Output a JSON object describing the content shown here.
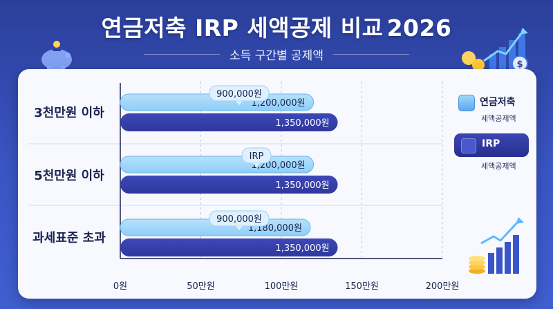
{
  "title_main": "연금저축 IRP 세액공제 비교",
  "title_year": "2026",
  "subtitle": "소득 구간별 공제액",
  "legend": {
    "a_label": "연금저축",
    "a_sub": "세액공제액",
    "b_label": "IRP",
    "b_sub": "세액공제액"
  },
  "colors": {
    "a_bar": "#8fcdf7",
    "b_bar": "#2f389c",
    "grid": "#b9c2dc"
  },
  "chart_data": {
    "type": "bar",
    "orientation": "horizontal",
    "categories": [
      "3천만원 이하",
      "5천만원 이하",
      "과세표준 초과"
    ],
    "series": [
      {
        "name": "연금저축",
        "values": [
          1200000,
          1200000,
          1180000
        ],
        "value_labels": [
          "1,200,000원",
          "1,200,000원",
          "1,180,000원"
        ]
      },
      {
        "name": "IRP",
        "values": [
          1350000,
          1350000,
          1350000
        ],
        "value_labels": [
          "1,350,000원",
          "1,350,000원",
          "1,350,000원"
        ]
      }
    ],
    "callouts": [
      "900,000원",
      "IRP",
      "900,000원"
    ],
    "x_ticks": [
      {
        "value": 0,
        "label": "0원"
      },
      {
        "value": 500000,
        "label": "50만원"
      },
      {
        "value": 1000000,
        "label": "100만원"
      },
      {
        "value": 1500000,
        "label": "150만원"
      },
      {
        "value": 2000000,
        "label": "200만원"
      }
    ],
    "xlim": [
      0,
      2000000
    ],
    "legend_position": "right",
    "grid": true
  }
}
